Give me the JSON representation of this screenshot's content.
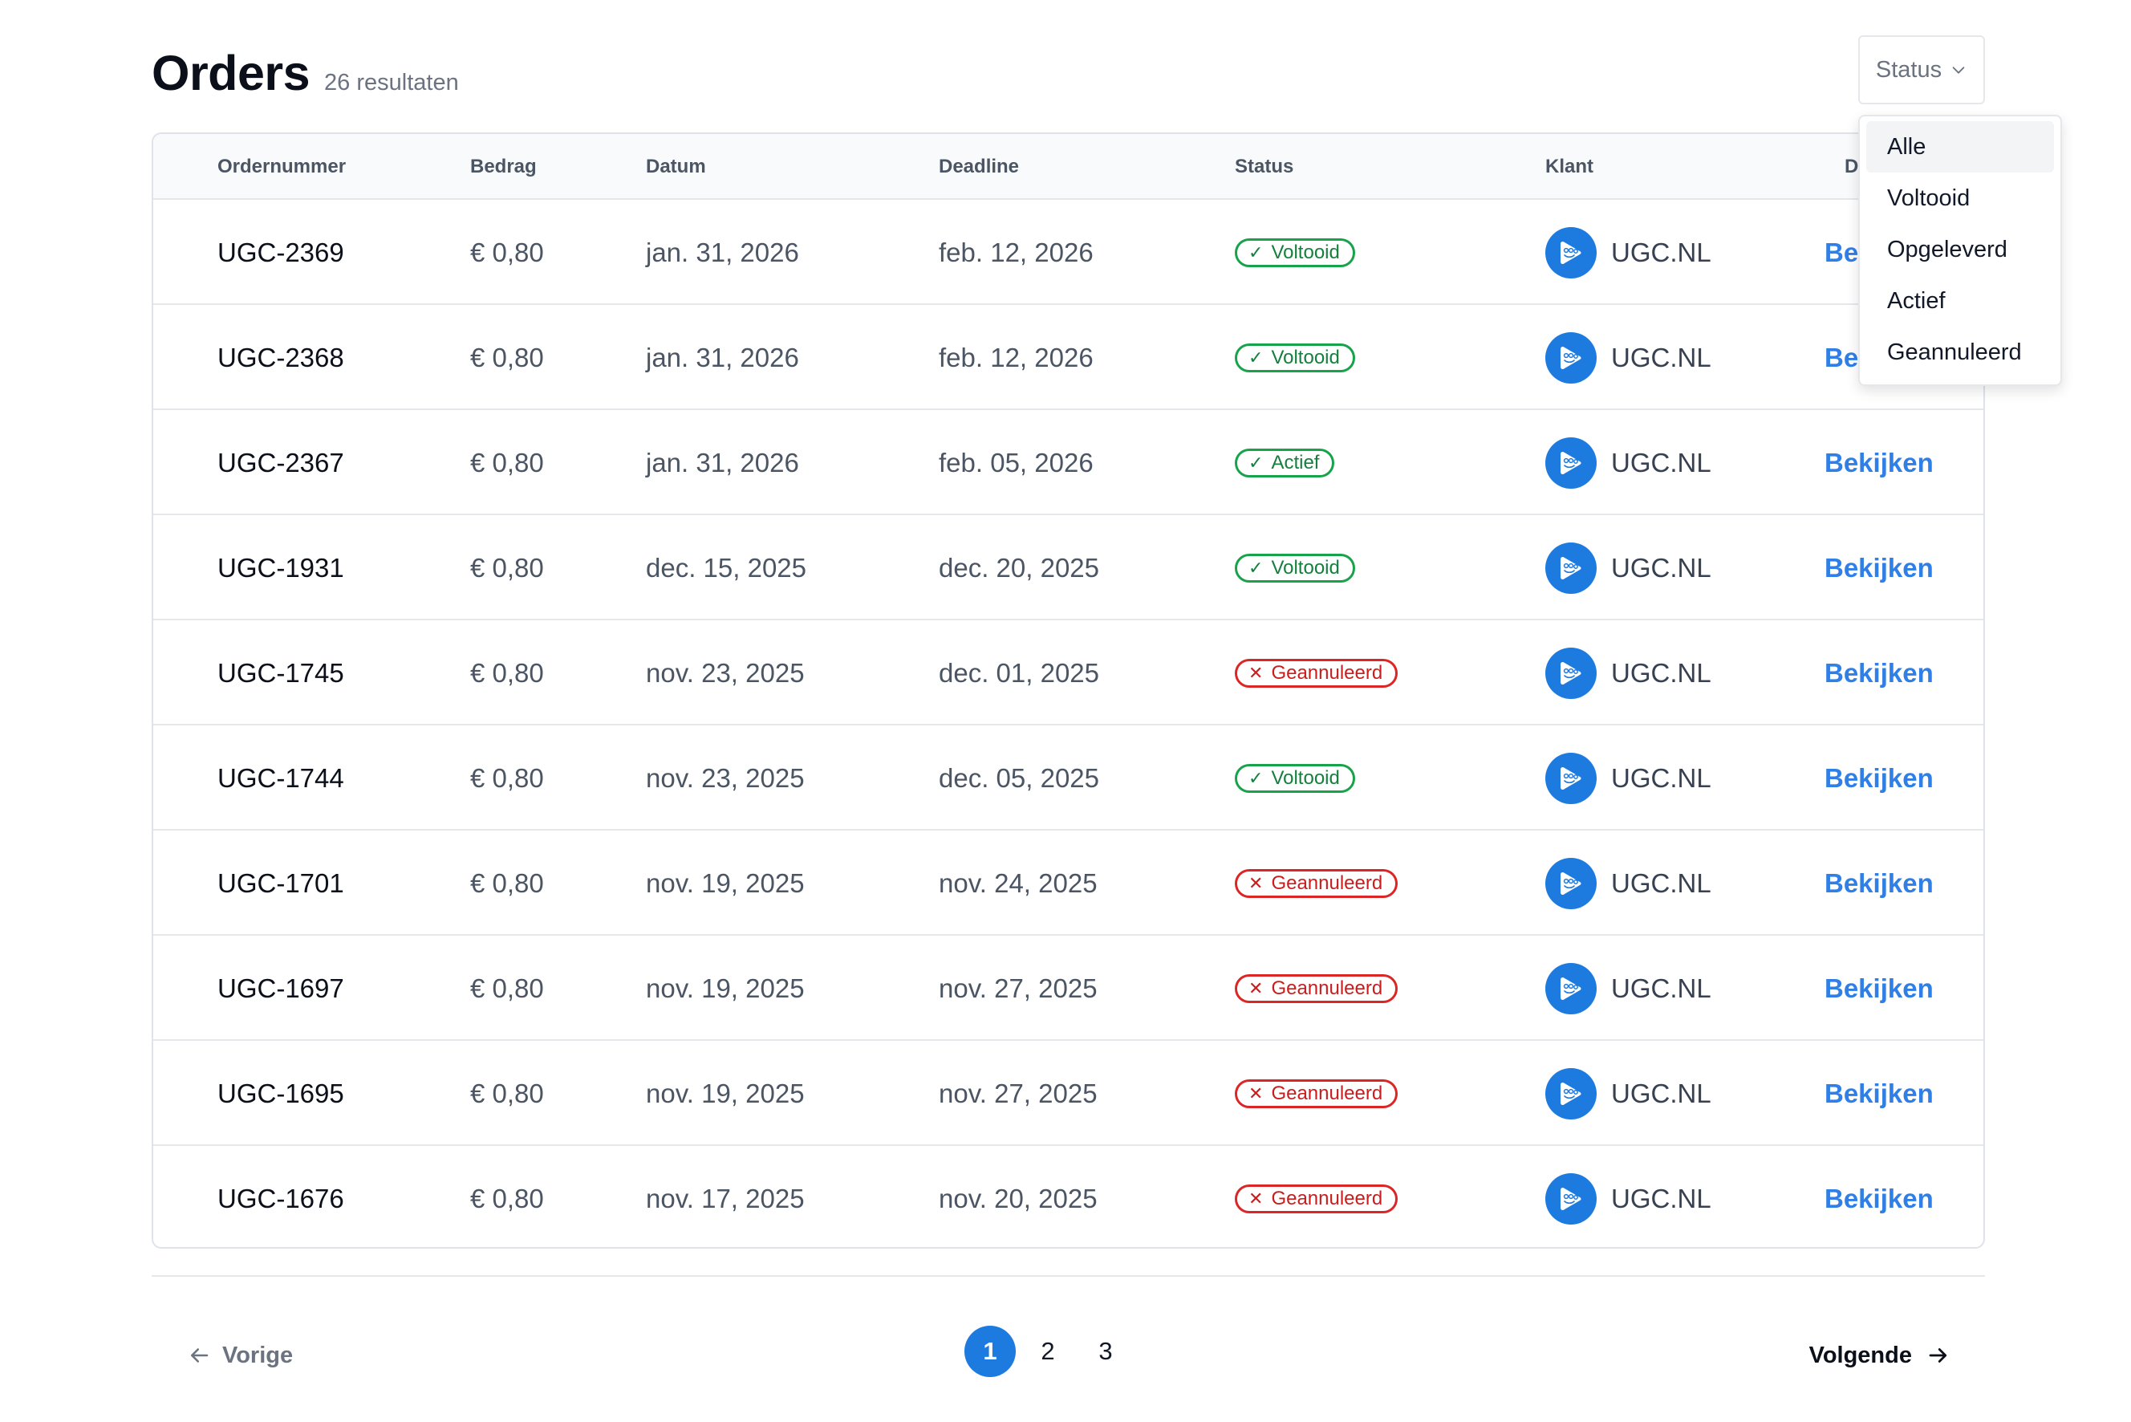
{
  "header": {
    "title": "Orders",
    "result_count": "26 resultaten"
  },
  "filter": {
    "label": "Status",
    "options": [
      "Alle",
      "Voltooid",
      "Opgeleverd",
      "Actief",
      "Geannuleerd"
    ],
    "highlighted": "Alle"
  },
  "table": {
    "columns": [
      "Ordernummer",
      "Bedrag",
      "Datum",
      "Deadline",
      "Status",
      "Klant",
      "Details"
    ],
    "rows": [
      {
        "order": "UGC-2369",
        "amount": "€ 0,80",
        "date": "jan. 31, 2026",
        "deadline": "feb. 12, 2026",
        "status": "Voltooid",
        "status_type": "ok",
        "client": "UGC.NL",
        "action": "Bekijken"
      },
      {
        "order": "UGC-2368",
        "amount": "€ 0,80",
        "date": "jan. 31, 2026",
        "deadline": "feb. 12, 2026",
        "status": "Voltooid",
        "status_type": "ok",
        "client": "UGC.NL",
        "action": "Bekijken"
      },
      {
        "order": "UGC-2367",
        "amount": "€ 0,80",
        "date": "jan. 31, 2026",
        "deadline": "feb. 05, 2026",
        "status": "Actief",
        "status_type": "ok",
        "client": "UGC.NL",
        "action": "Bekijken"
      },
      {
        "order": "UGC-1931",
        "amount": "€ 0,80",
        "date": "dec. 15, 2025",
        "deadline": "dec. 20, 2025",
        "status": "Voltooid",
        "status_type": "ok",
        "client": "UGC.NL",
        "action": "Bekijken"
      },
      {
        "order": "UGC-1745",
        "amount": "€ 0,80",
        "date": "nov. 23, 2025",
        "deadline": "dec. 01, 2025",
        "status": "Geannuleerd",
        "status_type": "cancel",
        "client": "UGC.NL",
        "action": "Bekijken"
      },
      {
        "order": "UGC-1744",
        "amount": "€ 0,80",
        "date": "nov. 23, 2025",
        "deadline": "dec. 05, 2025",
        "status": "Voltooid",
        "status_type": "ok",
        "client": "UGC.NL",
        "action": "Bekijken"
      },
      {
        "order": "UGC-1701",
        "amount": "€ 0,80",
        "date": "nov. 19, 2025",
        "deadline": "nov. 24, 2025",
        "status": "Geannuleerd",
        "status_type": "cancel",
        "client": "UGC.NL",
        "action": "Bekijken"
      },
      {
        "order": "UGC-1697",
        "amount": "€ 0,80",
        "date": "nov. 19, 2025",
        "deadline": "nov. 27, 2025",
        "status": "Geannuleerd",
        "status_type": "cancel",
        "client": "UGC.NL",
        "action": "Bekijken"
      },
      {
        "order": "UGC-1695",
        "amount": "€ 0,80",
        "date": "nov. 19, 2025",
        "deadline": "nov. 27, 2025",
        "status": "Geannuleerd",
        "status_type": "cancel",
        "client": "UGC.NL",
        "action": "Bekijken"
      },
      {
        "order": "UGC-1676",
        "amount": "€ 0,80",
        "date": "nov. 17, 2025",
        "deadline": "nov. 20, 2025",
        "status": "Geannuleerd",
        "status_type": "cancel",
        "client": "UGC.NL",
        "action": "Bekijken"
      }
    ]
  },
  "pagination": {
    "prev_label": "Vorige",
    "next_label": "Volgende",
    "pages": [
      "1",
      "2",
      "3"
    ],
    "current": "1"
  },
  "icons": {
    "prev": "arrow-left-icon",
    "next": "arrow-right-icon",
    "filter_chevron": "chevron-down-icon",
    "status_ok": "check-icon",
    "status_cancel": "x-icon",
    "client_avatar": "ugc-logo-icon"
  },
  "colors": {
    "accent": "#1d7be0",
    "link": "#2f7fe6",
    "status_ok": "#16a34a",
    "status_cancel": "#dc2626"
  }
}
